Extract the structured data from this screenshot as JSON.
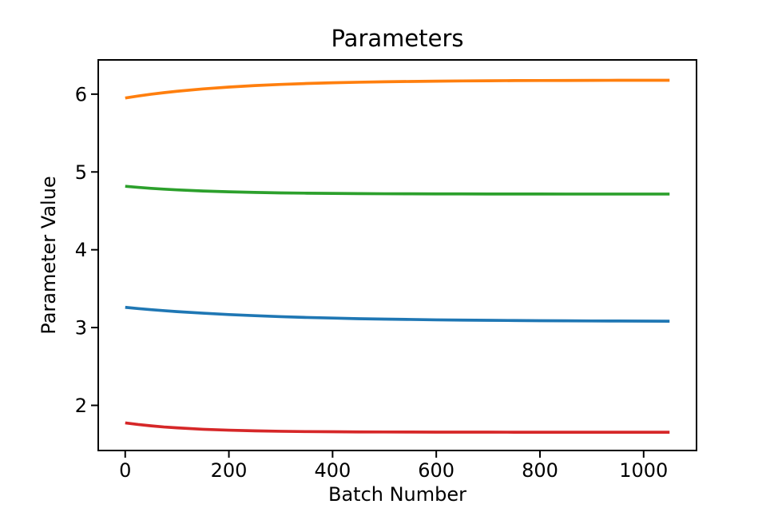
{
  "figure": {
    "background": "#ffffff",
    "axis_color": "#000000"
  },
  "chart_data": {
    "type": "line",
    "title": "Parameters",
    "xlabel": "Batch Number",
    "ylabel": "Parameter Value",
    "xlim": [
      -52,
      1102
    ],
    "ylim": [
      1.42,
      6.44
    ],
    "xticks": [
      0,
      200,
      400,
      600,
      800,
      1000
    ],
    "yticks": [
      2,
      3,
      4,
      5,
      6
    ],
    "grid": false,
    "legend": "none",
    "x": [
      0,
      25,
      50,
      75,
      100,
      150,
      200,
      250,
      300,
      350,
      400,
      450,
      500,
      550,
      600,
      650,
      700,
      750,
      800,
      850,
      900,
      950,
      1000,
      1050
    ],
    "series": [
      {
        "name": "orange",
        "color": "#ff7f0e",
        "values": [
          5.95,
          5.976,
          5.999,
          6.019,
          6.037,
          6.067,
          6.091,
          6.11,
          6.125,
          6.137,
          6.146,
          6.153,
          6.159,
          6.163,
          6.167,
          6.17,
          6.172,
          6.174,
          6.175,
          6.176,
          6.177,
          6.178,
          6.178,
          6.178
        ]
      },
      {
        "name": "green",
        "color": "#2ca02c",
        "values": [
          4.816,
          4.802,
          4.789,
          4.779,
          4.77,
          4.755,
          4.745,
          4.737,
          4.731,
          4.727,
          4.724,
          4.722,
          4.72,
          4.719,
          4.718,
          4.718,
          4.717,
          4.717,
          4.717,
          4.716,
          4.716,
          4.716,
          4.716,
          4.716
        ]
      },
      {
        "name": "blue",
        "color": "#1f77b4",
        "values": [
          3.26,
          3.244,
          3.23,
          3.217,
          3.205,
          3.185,
          3.167,
          3.153,
          3.14,
          3.13,
          3.122,
          3.114,
          3.109,
          3.104,
          3.099,
          3.096,
          3.093,
          3.091,
          3.088,
          3.087,
          3.085,
          3.084,
          3.083,
          3.082
        ]
      },
      {
        "name": "red",
        "color": "#d62728",
        "values": [
          1.775,
          1.754,
          1.737,
          1.722,
          1.711,
          1.693,
          1.681,
          1.673,
          1.667,
          1.663,
          1.661,
          1.659,
          1.658,
          1.657,
          1.656,
          1.656,
          1.656,
          1.655,
          1.655,
          1.655,
          1.655,
          1.655,
          1.655,
          1.655
        ]
      }
    ]
  }
}
